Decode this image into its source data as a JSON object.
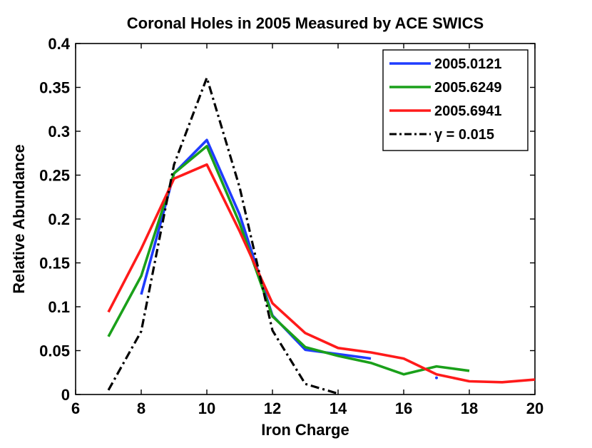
{
  "chart_data": {
    "type": "line",
    "title": "Coronal Holes in 2005 Measured by ACE SWICS",
    "xlabel": "Iron Charge",
    "ylabel": "Relative Abundance",
    "xlim": [
      6,
      20
    ],
    "ylim": [
      0,
      0.4
    ],
    "xticks": [
      6,
      8,
      10,
      12,
      14,
      16,
      18,
      20
    ],
    "yticks": [
      0,
      0.05,
      0.1,
      0.15,
      0.2,
      0.25,
      0.3,
      0.35,
      0.4
    ],
    "xtick_labels": [
      "6",
      "8",
      "10",
      "12",
      "14",
      "16",
      "18",
      "20"
    ],
    "ytick_labels": [
      "0",
      "0.05",
      "0.1",
      "0.15",
      "0.2",
      "0.25",
      "0.3",
      "0.35",
      "0.4"
    ],
    "grid": false,
    "legend_position": "top-right",
    "series": [
      {
        "name": "2005.0121",
        "color": "#1f3cff",
        "style": "solid",
        "x": [
          8,
          9,
          10,
          11,
          12,
          13,
          14,
          15
        ],
        "y": [
          0.114,
          0.252,
          0.29,
          0.205,
          0.09,
          0.051,
          0.046,
          0.041
        ],
        "extra_points": [
          {
            "x": 17,
            "y": 0.019
          }
        ]
      },
      {
        "name": "2005.6249",
        "color": "#1aa01a",
        "style": "solid",
        "x": [
          7,
          8,
          9,
          10,
          11,
          12,
          13,
          14,
          15,
          16,
          17,
          18
        ],
        "y": [
          0.066,
          0.135,
          0.252,
          0.283,
          0.195,
          0.089,
          0.054,
          0.044,
          0.036,
          0.023,
          0.032,
          0.027
        ]
      },
      {
        "name": "2005.6941",
        "color": "#ff1a1a",
        "style": "solid",
        "x": [
          7,
          8,
          9,
          10,
          11,
          12,
          13,
          14,
          15,
          16,
          17,
          18,
          19,
          20
        ],
        "y": [
          0.094,
          0.166,
          0.246,
          0.262,
          0.186,
          0.104,
          0.07,
          0.053,
          0.048,
          0.041,
          0.023,
          0.015,
          0.014,
          0.017
        ]
      },
      {
        "name": "γ = 0.015",
        "color": "#000000",
        "style": "dash-dot",
        "x": [
          7,
          8,
          9,
          10,
          11,
          12,
          13,
          14
        ],
        "y": [
          0.005,
          0.072,
          0.262,
          0.361,
          0.236,
          0.073,
          0.012,
          0.001
        ]
      }
    ]
  }
}
